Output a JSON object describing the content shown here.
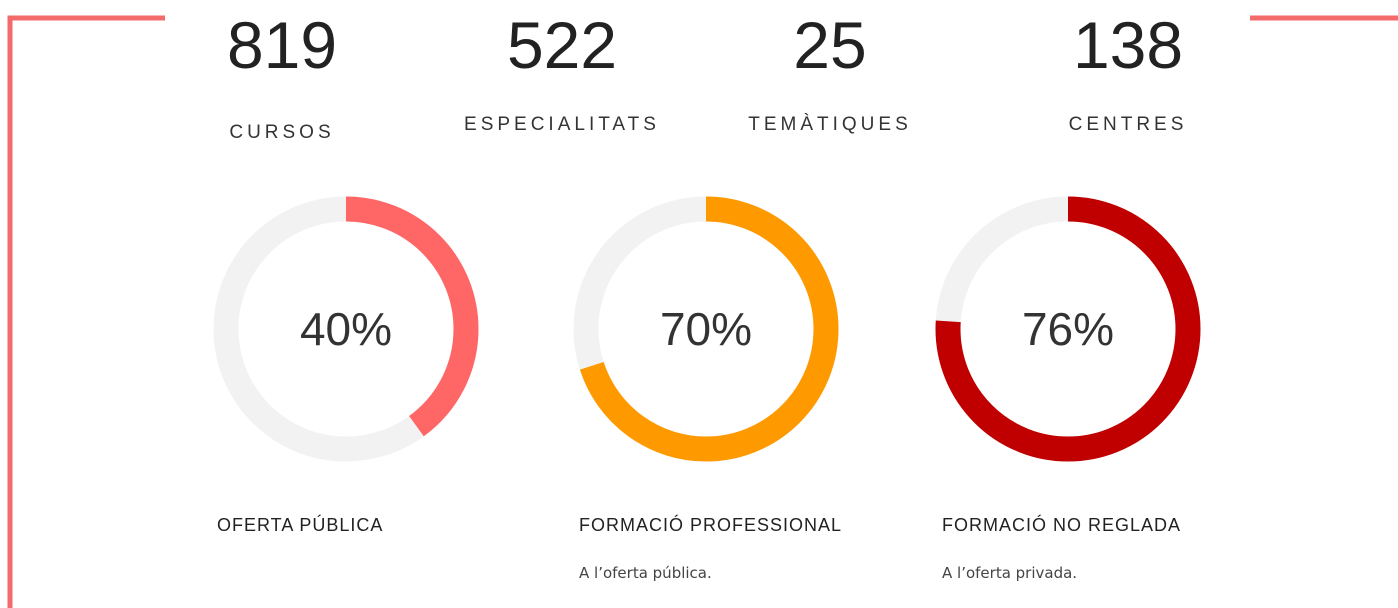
{
  "stats": [
    {
      "value": 819,
      "label": "CURSOS"
    },
    {
      "value": 522,
      "label": "ESPECIALITATS"
    },
    {
      "value": 25,
      "label": "TEMÀTIQUES"
    },
    {
      "value": 138,
      "label": "CENTRES"
    }
  ],
  "gauges": [
    {
      "value": 40,
      "label": "40%",
      "color": "#ff6666",
      "title": "OFERTA PÚBLICA"
    },
    {
      "value": 70,
      "label": "70%",
      "color": "#ff9900",
      "title": "FORMACIÓ PROFESSIONAL",
      "subtitle": "A l’oferta pública."
    },
    {
      "value": 76,
      "label": "76%",
      "color": "#c00000",
      "title": "FORMACIÓ NO REGLADA",
      "subtitle": "A l’oferta privada."
    }
  ]
}
